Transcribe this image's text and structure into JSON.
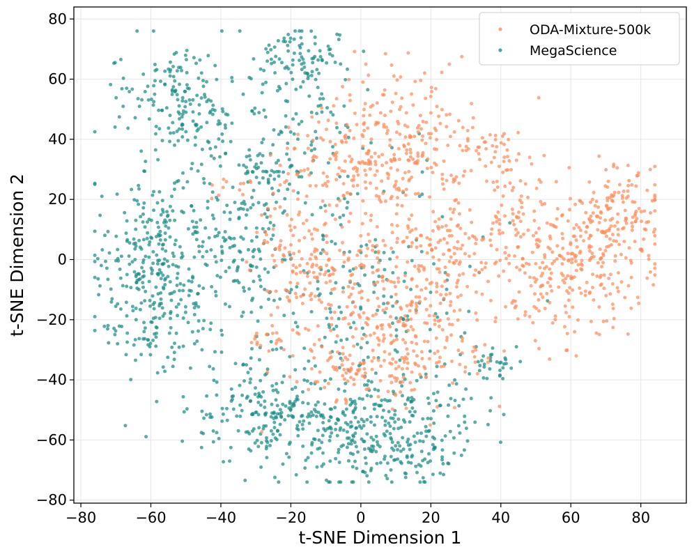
{
  "chart_data": {
    "type": "scatter",
    "title": "",
    "xlabel": "t-SNE Dimension 1",
    "ylabel": "t-SNE Dimension 2",
    "xlim": [
      -82,
      93
    ],
    "ylim": [
      -81,
      84
    ],
    "xticks": [
      -80,
      -60,
      -40,
      -20,
      0,
      20,
      40,
      60,
      80
    ],
    "yticks": [
      -80,
      -60,
      -40,
      -20,
      0,
      20,
      40,
      60,
      80
    ],
    "grid": true,
    "legend_position": "top-right",
    "series": [
      {
        "name": "ODA-Mixture-500k",
        "color": "#FF8C5A",
        "clusters": [
          {
            "cx": 60,
            "cy": -1,
            "sx": 12,
            "sy": 11,
            "n": 300
          },
          {
            "cx": 74,
            "cy": 17,
            "sx": 7,
            "sy": 7,
            "n": 110
          },
          {
            "cx": 43,
            "cy": 22,
            "sx": 4,
            "sy": 9,
            "n": 45
          },
          {
            "cx": 13,
            "cy": 36,
            "sx": 10,
            "sy": 14,
            "n": 240
          },
          {
            "cx": -5,
            "cy": 32,
            "sx": 9,
            "sy": 8,
            "n": 80
          },
          {
            "cx": 8,
            "cy": -10,
            "sx": 16,
            "sy": 17,
            "n": 360
          },
          {
            "cx": -18,
            "cy": -2,
            "sx": 7,
            "sy": 12,
            "n": 90
          },
          {
            "cx": 14,
            "cy": -32,
            "sx": 8,
            "sy": 6,
            "n": 70
          },
          {
            "cx": -8,
            "cy": -37,
            "sx": 8,
            "sy": 5,
            "n": 50
          },
          {
            "cx": 37,
            "cy": 36,
            "sx": 4,
            "sy": 4,
            "n": 30
          },
          {
            "cx": -36,
            "cy": 24,
            "sx": 3,
            "sy": 2,
            "n": 12
          },
          {
            "cx": -27,
            "cy": -27,
            "sx": 3,
            "sy": 2,
            "n": 10
          },
          {
            "cx": 25,
            "cy": 3,
            "sx": 7,
            "sy": 9,
            "n": 80
          }
        ]
      },
      {
        "name": "MegaScience",
        "color": "#1B8C86",
        "clusters": [
          {
            "cx": -50,
            "cy": 52,
            "sx": 9,
            "sy": 9,
            "n": 160
          },
          {
            "cx": -18,
            "cy": 67,
            "sx": 6,
            "sy": 5,
            "n": 90
          },
          {
            "cx": -62,
            "cy": -7,
            "sx": 8,
            "sy": 14,
            "n": 230
          },
          {
            "cx": -50,
            "cy": 8,
            "sx": 9,
            "sy": 22,
            "n": 200
          },
          {
            "cx": -32,
            "cy": 5,
            "sx": 6,
            "sy": 10,
            "n": 80
          },
          {
            "cx": -5,
            "cy": -55,
            "sx": 17,
            "sy": 9,
            "n": 290
          },
          {
            "cx": 12,
            "cy": -62,
            "sx": 9,
            "sy": 8,
            "n": 120
          },
          {
            "cx": -30,
            "cy": -50,
            "sx": 7,
            "sy": 9,
            "n": 110
          },
          {
            "cx": 0,
            "cy": -15,
            "sx": 17,
            "sy": 20,
            "n": 220
          },
          {
            "cx": -15,
            "cy": 40,
            "sx": 10,
            "sy": 14,
            "n": 90
          },
          {
            "cx": 38,
            "cy": -35,
            "sx": 3,
            "sy": 4,
            "n": 30
          },
          {
            "cx": -28,
            "cy": 30,
            "sx": 6,
            "sy": 8,
            "n": 40
          }
        ]
      }
    ]
  }
}
